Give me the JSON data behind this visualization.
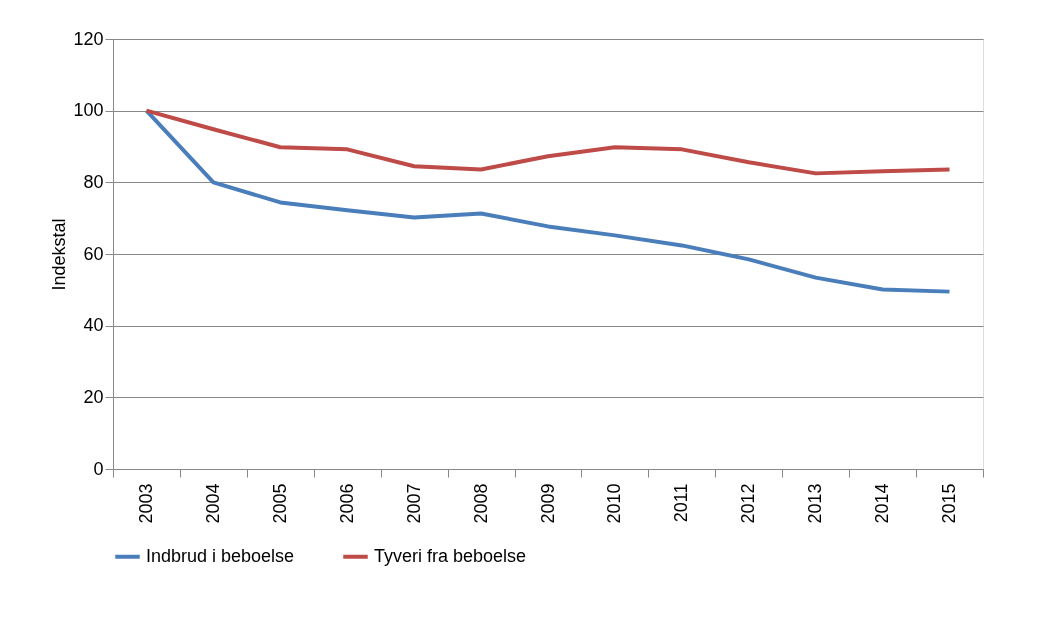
{
  "chart_data": {
    "type": "line",
    "ylabel": "Indekstal",
    "categories": [
      "2003",
      "2004",
      "2005",
      "2006",
      "2007",
      "2008",
      "2009",
      "2010",
      "2011",
      "2012",
      "2013",
      "2014",
      "2015"
    ],
    "series": [
      {
        "name": "Indbrud i beboelse",
        "color": "#4a7ebb",
        "values": [
          100,
          80,
          74.4,
          72.2,
          70.2,
          71.3,
          67.7,
          65.2,
          62.4,
          58.5,
          53.4,
          50.1,
          49.5
        ]
      },
      {
        "name": "Tyveri fra beboelse",
        "color": "#be4b48",
        "values": [
          100,
          94.8,
          89.8,
          89.2,
          84.5,
          83.6,
          87.3,
          89.8,
          89.2,
          85.6,
          82.5,
          83.1,
          83.6
        ]
      }
    ],
    "ylim": [
      0,
      120
    ],
    "yticks": [
      0,
      20,
      40,
      60,
      80,
      100,
      120
    ],
    "grid": "y",
    "legend": "bottom",
    "marker": "none",
    "line_style": "solid"
  }
}
